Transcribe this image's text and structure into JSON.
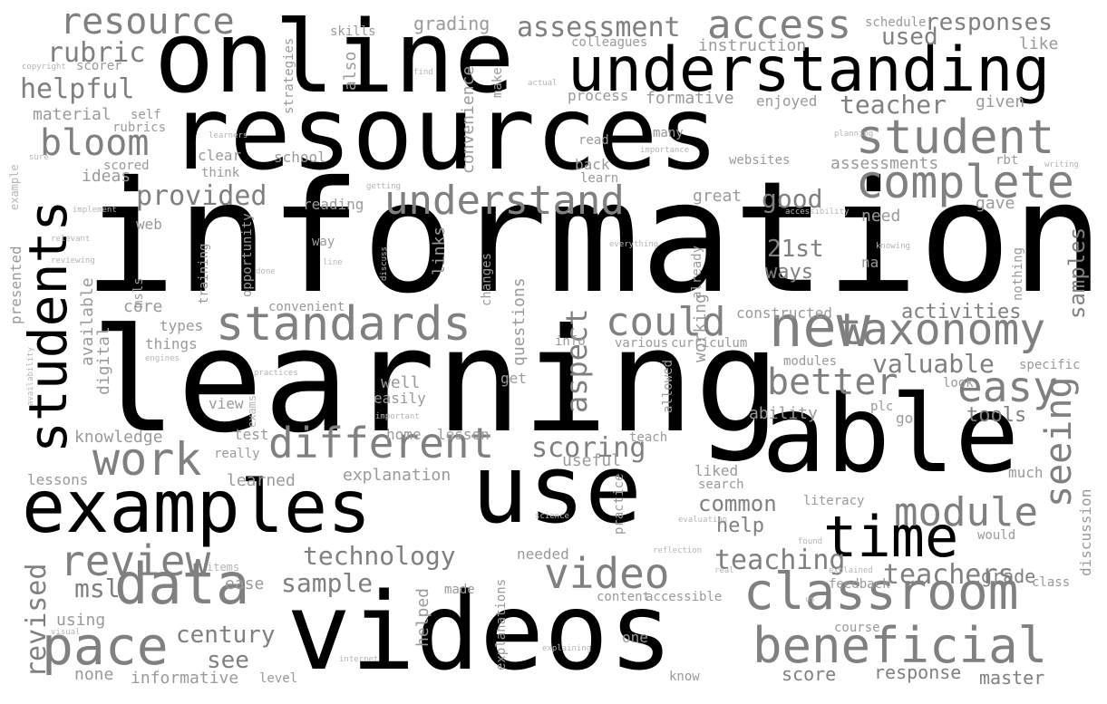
{
  "colors": {
    "background": "#ffffff",
    "dominant": "#000000",
    "secondary": "#808080",
    "minor": "#b5b5b5"
  },
  "words": [
    {
      "text": "information",
      "level": 1
    },
    {
      "text": "learning",
      "level": 1
    },
    {
      "text": "resources",
      "level": 1
    },
    {
      "text": "online",
      "level": 1
    },
    {
      "text": "videos",
      "level": 1
    },
    {
      "text": "able",
      "level": 1
    },
    {
      "text": "use",
      "level": 1
    },
    {
      "text": "examples",
      "level": 1
    },
    {
      "text": "understanding",
      "level": 1
    },
    {
      "text": "time",
      "level": 1
    },
    {
      "text": "students",
      "level": 1
    },
    {
      "text": "new",
      "level": 3
    },
    {
      "text": "classroom",
      "level": 3
    },
    {
      "text": "beneficial",
      "level": 3
    },
    {
      "text": "data",
      "level": 3
    },
    {
      "text": "pace",
      "level": 3
    },
    {
      "text": "standards",
      "level": 3
    },
    {
      "text": "different",
      "level": 3
    },
    {
      "text": "complete",
      "level": 3
    },
    {
      "text": "student",
      "level": 3
    },
    {
      "text": "taxonomy",
      "level": 3
    },
    {
      "text": "access",
      "level": 3
    },
    {
      "text": "resource",
      "level": 3
    },
    {
      "text": "understand",
      "level": 3
    },
    {
      "text": "could",
      "level": 3
    },
    {
      "text": "video",
      "level": 3
    },
    {
      "text": "easy",
      "level": 3
    },
    {
      "text": "module",
      "level": 3
    },
    {
      "text": "work",
      "level": 3
    },
    {
      "text": "review",
      "level": 3
    },
    {
      "text": "bloom",
      "level": 3
    },
    {
      "text": "better",
      "level": 3
    },
    {
      "text": "seeing",
      "level": 3
    },
    {
      "text": "assessment",
      "level": 3
    },
    {
      "text": "provided",
      "level": 3
    },
    {
      "text": "responses",
      "level": 3
    },
    {
      "text": "teacher",
      "level": 3
    },
    {
      "text": "valuable",
      "level": 3
    },
    {
      "text": "scoring",
      "level": 3
    },
    {
      "text": "teaching",
      "level": 3
    },
    {
      "text": "teachers",
      "level": 3
    },
    {
      "text": "technology",
      "level": 3
    },
    {
      "text": "sample",
      "level": 3
    },
    {
      "text": "aspect",
      "level": 3
    },
    {
      "text": "helpful",
      "level": 3
    },
    {
      "text": "rubric",
      "level": 3
    },
    {
      "text": "revised",
      "level": 3
    },
    {
      "text": "century",
      "level": 3
    },
    {
      "text": "msl",
      "level": 3
    },
    {
      "text": "see",
      "level": 3
    },
    {
      "text": "used",
      "level": 3
    },
    {
      "text": "good",
      "level": 3
    },
    {
      "text": "21st",
      "level": 3
    },
    {
      "text": "ways",
      "level": 3
    },
    {
      "text": "common",
      "level": 3
    },
    {
      "text": "help",
      "level": 3
    },
    {
      "text": "activities",
      "level": 3
    },
    {
      "text": "samples",
      "level": 3
    },
    {
      "text": "tools",
      "level": 3
    },
    {
      "text": "grade",
      "level": 3
    },
    {
      "text": "score",
      "level": 3
    },
    {
      "text": "response",
      "level": 3
    },
    {
      "text": "master",
      "level": 3
    },
    {
      "text": "discussion",
      "level": 4
    },
    {
      "text": "none",
      "level": 4
    },
    {
      "text": "informative",
      "level": 4
    },
    {
      "text": "level",
      "level": 4
    },
    {
      "text": "using",
      "level": 4
    },
    {
      "text": "ease",
      "level": 4
    },
    {
      "text": "explanation",
      "level": 4
    },
    {
      "text": "knowledge",
      "level": 4
    },
    {
      "text": "lessons",
      "level": 4
    },
    {
      "text": "learned",
      "level": 4
    },
    {
      "text": "test",
      "level": 4
    },
    {
      "text": "really",
      "level": 4
    },
    {
      "text": "view",
      "level": 4
    },
    {
      "text": "well",
      "level": 4
    },
    {
      "text": "easily",
      "level": 4
    },
    {
      "text": "home",
      "level": 4
    },
    {
      "text": "lesson",
      "level": 4
    },
    {
      "text": "useful",
      "level": 4
    },
    {
      "text": "teach",
      "level": 4
    },
    {
      "text": "liked",
      "level": 4
    },
    {
      "text": "search",
      "level": 4
    },
    {
      "text": "literacy",
      "level": 4
    },
    {
      "text": "practice",
      "level": 4
    },
    {
      "text": "needed",
      "level": 4
    },
    {
      "text": "made",
      "level": 4
    },
    {
      "text": "helped",
      "level": 4
    },
    {
      "text": "content",
      "level": 4
    },
    {
      "text": "accessible",
      "level": 4
    },
    {
      "text": "feedback",
      "level": 4
    },
    {
      "text": "course",
      "level": 4
    },
    {
      "text": "know",
      "level": 4
    },
    {
      "text": "one",
      "level": 4
    },
    {
      "text": "explanations",
      "level": 4
    },
    {
      "text": "much",
      "level": 4
    },
    {
      "text": "would",
      "level": 4
    },
    {
      "text": "class",
      "level": 4
    },
    {
      "text": "plc",
      "level": 4
    },
    {
      "text": "go",
      "level": 4
    },
    {
      "text": "ability",
      "level": 4
    },
    {
      "text": "look",
      "level": 4
    },
    {
      "text": "specific",
      "level": 4
    },
    {
      "text": "modules",
      "level": 4
    },
    {
      "text": "allowed",
      "level": 4
    },
    {
      "text": "curriculum",
      "level": 4
    },
    {
      "text": "various",
      "level": 4
    },
    {
      "text": "info",
      "level": 4
    },
    {
      "text": "get",
      "level": 4
    },
    {
      "text": "constructed",
      "level": 4
    },
    {
      "text": "na",
      "level": 4
    },
    {
      "text": "nothing",
      "level": 4
    },
    {
      "text": "already",
      "level": 4
    },
    {
      "text": "working",
      "level": 4
    },
    {
      "text": "questions",
      "level": 4
    },
    {
      "text": "changes",
      "level": 4
    },
    {
      "text": "links",
      "level": 4
    },
    {
      "text": "reading",
      "level": 4
    },
    {
      "text": "way",
      "level": 4
    },
    {
      "text": "web",
      "level": 4
    },
    {
      "text": "core",
      "level": 4
    },
    {
      "text": "types",
      "level": 4
    },
    {
      "text": "things",
      "level": 4
    },
    {
      "text": "available",
      "level": 4
    },
    {
      "text": "digital",
      "level": 4
    },
    {
      "text": "convenient",
      "level": 4
    },
    {
      "text": "opportunity",
      "level": 4
    },
    {
      "text": "training",
      "level": 4
    },
    {
      "text": "msls",
      "level": 4
    },
    {
      "text": "presented",
      "level": 4
    },
    {
      "text": "ideas",
      "level": 4
    },
    {
      "text": "scored",
      "level": 4
    },
    {
      "text": "think",
      "level": 4
    },
    {
      "text": "clear",
      "level": 4
    },
    {
      "text": "school",
      "level": 4
    },
    {
      "text": "rubrics",
      "level": 4
    },
    {
      "text": "material",
      "level": 4
    },
    {
      "text": "self",
      "level": 4
    },
    {
      "text": "scorer",
      "level": 4
    },
    {
      "text": "skills",
      "level": 4
    },
    {
      "text": "strategies",
      "level": 4
    },
    {
      "text": "also",
      "level": 4
    },
    {
      "text": "convenience",
      "level": 4
    },
    {
      "text": "make",
      "level": 4
    },
    {
      "text": "grading",
      "level": 4
    },
    {
      "text": "colleagues",
      "level": 4
    },
    {
      "text": "instruction",
      "level": 4
    },
    {
      "text": "process",
      "level": 4
    },
    {
      "text": "formative",
      "level": 4
    },
    {
      "text": "enjoyed",
      "level": 4
    },
    {
      "text": "given",
      "level": 4
    },
    {
      "text": "like",
      "level": 4
    },
    {
      "text": "schedule",
      "level": 4
    },
    {
      "text": "read",
      "level": 4
    },
    {
      "text": "many",
      "level": 4
    },
    {
      "text": "back",
      "level": 4
    },
    {
      "text": "learn",
      "level": 4
    },
    {
      "text": "websites",
      "level": 4
    },
    {
      "text": "assessments",
      "level": 4
    },
    {
      "text": "rbt",
      "level": 4
    },
    {
      "text": "great",
      "level": 4
    },
    {
      "text": "gave",
      "level": 4
    },
    {
      "text": "need",
      "level": 4
    },
    {
      "text": "copyright",
      "level": 5
    },
    {
      "text": "find",
      "level": 5
    },
    {
      "text": "actual",
      "level": 5
    },
    {
      "text": "learners",
      "level": 5
    },
    {
      "text": "importance",
      "level": 5
    },
    {
      "text": "planning",
      "level": 5
    },
    {
      "text": "writing",
      "level": 5
    },
    {
      "text": "sure",
      "level": 5
    },
    {
      "text": "example",
      "level": 5
    },
    {
      "text": "implement",
      "level": 5
    },
    {
      "text": "getting",
      "level": 5
    },
    {
      "text": "accessibility",
      "level": 5
    },
    {
      "text": "relevant",
      "level": 5
    },
    {
      "text": "reviewing",
      "level": 5
    },
    {
      "text": "everything",
      "level": 5
    },
    {
      "text": "knowing",
      "level": 5
    },
    {
      "text": "done",
      "level": 5
    },
    {
      "text": "line",
      "level": 5
    },
    {
      "text": "discuss",
      "level": 5
    },
    {
      "text": "availability",
      "level": 5
    },
    {
      "text": "engines",
      "level": 5
    },
    {
      "text": "practices",
      "level": 5
    },
    {
      "text": "important",
      "level": 5
    },
    {
      "text": "exams",
      "level": 5
    },
    {
      "text": "science",
      "level": 5
    },
    {
      "text": "evaluation",
      "level": 5
    },
    {
      "text": "reflection",
      "level": 5
    },
    {
      "text": "real",
      "level": 5
    },
    {
      "text": "found",
      "level": 5
    },
    {
      "text": "explained",
      "level": 5
    },
    {
      "text": "us",
      "level": 5
    },
    {
      "text": "items",
      "level": 5
    },
    {
      "text": "visual",
      "level": 5
    },
    {
      "text": "internet",
      "level": 5
    },
    {
      "text": "explaining",
      "level": 5
    }
  ]
}
